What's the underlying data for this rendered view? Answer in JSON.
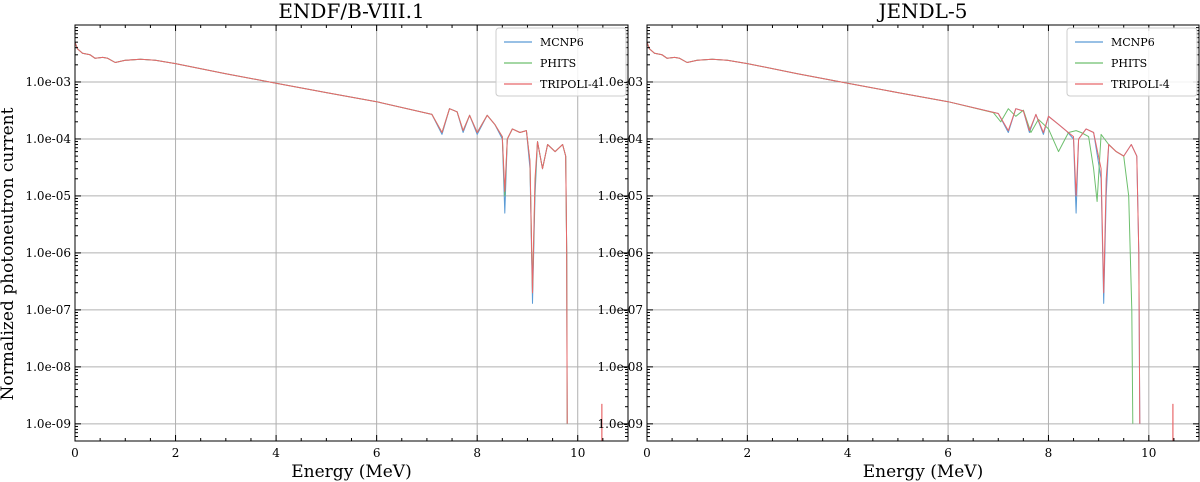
{
  "figure": {
    "ylabel": "Normalized photoneutron current"
  },
  "chart_data": [
    {
      "type": "line",
      "title": "ENDF/B-VIII.1",
      "xlabel": "Energy (MeV)",
      "ylabel": "Normalized photoneutron current",
      "xlim": [
        0,
        11
      ],
      "ylim": [
        5e-10,
        0.01
      ],
      "yscale": "log",
      "grid": true,
      "legend_position": "top-right",
      "xticks": [
        0,
        2,
        4,
        6,
        8,
        10
      ],
      "xtick_labels": [
        "0",
        "2",
        "4",
        "6",
        "8",
        "10"
      ],
      "yticks": [
        0.001,
        0.0001,
        1e-05,
        1e-06,
        1e-07,
        1e-08,
        1e-09
      ],
      "ytick_labels": [
        "1.0e-03",
        "1.0e-04",
        "1.0e-05",
        "1.0e-06",
        "1.0e-07",
        "1.0e-08",
        "1.0e-09"
      ],
      "series": [
        {
          "name": "MCNP6",
          "color": "#5b9bd5",
          "x": [
            0,
            0.05,
            0.15,
            0.3,
            0.4,
            0.55,
            0.65,
            0.8,
            1.0,
            1.3,
            1.6,
            2.0,
            3.0,
            4.0,
            5.0,
            6.0,
            7.1,
            7.3,
            7.45,
            7.6,
            7.72,
            7.85,
            8.0,
            8.2,
            8.35,
            8.5,
            8.55,
            8.6,
            8.7,
            8.85,
            8.98,
            9.05,
            9.1,
            9.15,
            9.2,
            9.3,
            9.4,
            9.55,
            9.7,
            9.76,
            9.78,
            9.79
          ],
          "y": [
            0.005,
            0.0038,
            0.0032,
            0.003,
            0.0026,
            0.0027,
            0.0026,
            0.0022,
            0.0024,
            0.0025,
            0.0024,
            0.0021,
            0.0014,
            0.00095,
            0.00065,
            0.00045,
            0.00027,
            0.00012,
            0.00034,
            0.0003,
            0.00013,
            0.00026,
            0.00012,
            0.00026,
            0.00018,
            0.0001,
            5e-06,
            0.0001,
            0.00015,
            0.00013,
            0.00014,
            3e-05,
            1.3e-07,
            1e-05,
            9e-05,
            3e-05,
            8e-05,
            6e-05,
            8e-05,
            5e-05,
            1e-06,
            1e-09
          ]
        },
        {
          "name": "PHITS",
          "color": "#6dbf6d",
          "x": [
            0,
            0.05,
            0.15,
            0.3,
            0.4,
            0.55,
            0.65,
            0.8,
            1.0,
            1.3,
            1.6,
            2.0,
            3.0,
            4.0,
            5.0,
            6.0,
            7.1,
            7.3,
            7.45,
            7.6,
            7.72,
            7.85,
            8.0,
            8.2,
            8.35,
            8.5,
            8.55,
            8.6,
            8.7,
            8.85,
            8.98,
            9.05,
            9.1,
            9.15,
            9.2,
            9.3,
            9.4,
            9.55,
            9.7,
            9.76,
            9.78,
            9.79
          ],
          "y": [
            0.005,
            0.0038,
            0.0032,
            0.003,
            0.0026,
            0.0027,
            0.0026,
            0.0022,
            0.0024,
            0.0025,
            0.0024,
            0.0021,
            0.0014,
            0.00095,
            0.00065,
            0.00045,
            0.00027,
            0.00013,
            0.00034,
            0.0003,
            0.00014,
            0.00026,
            0.00013,
            0.00026,
            0.00018,
            0.00011,
            1e-05,
            0.0001,
            0.00015,
            0.00013,
            0.00014,
            4e-05,
            2e-07,
            1.5e-05,
            9e-05,
            3e-05,
            8e-05,
            6e-05,
            8e-05,
            5e-05,
            1e-06,
            1e-09
          ]
        },
        {
          "name": "TRIPOLI-4",
          "color": "#e8676a",
          "x": [
            0,
            0.05,
            0.15,
            0.3,
            0.4,
            0.55,
            0.65,
            0.8,
            1.0,
            1.3,
            1.6,
            2.0,
            3.0,
            4.0,
            5.0,
            6.0,
            7.1,
            7.3,
            7.45,
            7.6,
            7.72,
            7.85,
            8.0,
            8.2,
            8.35,
            8.5,
            8.55,
            8.6,
            8.7,
            8.85,
            8.98,
            9.05,
            9.1,
            9.15,
            9.2,
            9.3,
            9.4,
            9.55,
            9.7,
            9.76,
            9.78,
            9.79
          ],
          "y": [
            0.005,
            0.0038,
            0.0032,
            0.003,
            0.0026,
            0.0027,
            0.0026,
            0.0022,
            0.0024,
            0.0025,
            0.0024,
            0.0021,
            0.0014,
            0.00095,
            0.00065,
            0.00045,
            0.00027,
            0.00013,
            0.00034,
            0.0003,
            0.00014,
            0.00026,
            0.00013,
            0.00026,
            0.00018,
            0.00011,
            1.2e-05,
            0.0001,
            0.00015,
            0.00013,
            0.00014,
            4e-05,
            2e-07,
            2e-05,
            9e-05,
            3e-05,
            8e-05,
            6e-05,
            8e-05,
            5e-05,
            1e-06,
            1e-09
          ]
        }
      ],
      "spikes": [
        {
          "x": 10.48,
          "y": 1e-09,
          "color": "#e8676a"
        }
      ]
    },
    {
      "type": "line",
      "title": "JENDL-5",
      "xlabel": "Energy (MeV)",
      "ylabel": "Normalized photoneutron current",
      "xlim": [
        0,
        11
      ],
      "ylim": [
        5e-10,
        0.01
      ],
      "yscale": "log",
      "grid": true,
      "legend_position": "top-right",
      "xticks": [
        0,
        2,
        4,
        6,
        8,
        10
      ],
      "xtick_labels": [
        "0",
        "2",
        "4",
        "6",
        "8",
        "10"
      ],
      "yticks": [
        0.001,
        0.0001,
        1e-05,
        1e-06,
        1e-07,
        1e-08,
        1e-09
      ],
      "ytick_labels": [
        "1.0e-03",
        "1.0e-04",
        "1.0e-05",
        "1.0e-06",
        "1.0e-07",
        "1.0e-08",
        "1.0e-09"
      ],
      "series": [
        {
          "name": "MCNP6",
          "color": "#5b9bd5",
          "x": [
            0,
            0.05,
            0.15,
            0.3,
            0.4,
            0.55,
            0.65,
            0.8,
            1.0,
            1.3,
            1.6,
            2.0,
            3.0,
            4.0,
            5.0,
            6.0,
            7.0,
            7.2,
            7.35,
            7.5,
            7.62,
            7.75,
            7.9,
            8.0,
            8.2,
            8.35,
            8.5,
            8.55,
            8.6,
            8.75,
            8.9,
            9.05,
            9.1,
            9.15,
            9.2,
            9.35,
            9.5,
            9.65,
            9.76,
            9.8,
            9.82
          ],
          "y": [
            0.005,
            0.0038,
            0.0032,
            0.003,
            0.0026,
            0.0027,
            0.0026,
            0.0022,
            0.0024,
            0.0025,
            0.0024,
            0.0021,
            0.0014,
            0.00095,
            0.00065,
            0.00045,
            0.00028,
            0.00013,
            0.00034,
            0.00031,
            0.00013,
            0.00027,
            0.00012,
            0.00025,
            0.00018,
            0.00014,
            0.0001,
            5e-06,
            0.0001,
            0.00015,
            0.00013,
            2e-05,
            1.3e-07,
            1e-05,
            8e-05,
            6e-05,
            5e-05,
            8e-05,
            5e-05,
            1e-06,
            1e-09
          ]
        },
        {
          "name": "PHITS",
          "color": "#6dbf6d",
          "x": [
            0,
            0.05,
            0.15,
            0.3,
            0.4,
            0.55,
            0.65,
            0.8,
            1.0,
            1.3,
            1.6,
            2.0,
            3.0,
            4.0,
            5.0,
            6.0,
            6.9,
            7.05,
            7.2,
            7.35,
            7.5,
            7.65,
            7.8,
            8.0,
            8.2,
            8.4,
            8.55,
            8.65,
            8.8,
            8.9,
            8.97,
            9.05,
            9.2,
            9.35,
            9.5,
            9.6,
            9.66,
            9.68
          ],
          "y": [
            0.005,
            0.0038,
            0.0032,
            0.003,
            0.0026,
            0.0027,
            0.0026,
            0.0022,
            0.0024,
            0.0025,
            0.0024,
            0.0021,
            0.0014,
            0.00095,
            0.00065,
            0.00045,
            0.00029,
            0.0002,
            0.00034,
            0.00025,
            0.00032,
            0.00013,
            0.00022,
            0.00015,
            6e-05,
            0.00013,
            0.00014,
            0.00013,
            0.00011,
            3e-05,
            8e-06,
            0.00012,
            8e-05,
            6e-05,
            5e-05,
            1e-05,
            1e-07,
            1e-09
          ]
        },
        {
          "name": "TRIPOLI-4",
          "color": "#e8676a",
          "x": [
            0,
            0.05,
            0.15,
            0.3,
            0.4,
            0.55,
            0.65,
            0.8,
            1.0,
            1.3,
            1.6,
            2.0,
            3.0,
            4.0,
            5.0,
            6.0,
            7.0,
            7.2,
            7.35,
            7.5,
            7.62,
            7.75,
            7.9,
            8.0,
            8.2,
            8.35,
            8.5,
            8.55,
            8.6,
            8.75,
            8.9,
            9.05,
            9.1,
            9.15,
            9.2,
            9.35,
            9.5,
            9.65,
            9.76,
            9.8,
            9.82
          ],
          "y": [
            0.005,
            0.0038,
            0.0032,
            0.003,
            0.0026,
            0.0027,
            0.0026,
            0.0022,
            0.0024,
            0.0025,
            0.0024,
            0.0021,
            0.0014,
            0.00095,
            0.00065,
            0.00045,
            0.00028,
            0.00014,
            0.00034,
            0.00031,
            0.00014,
            0.00027,
            0.00013,
            0.00025,
            0.00018,
            0.00014,
            0.00011,
            1e-05,
            0.0001,
            0.00015,
            0.00013,
            3e-05,
            2e-07,
            2e-05,
            8e-05,
            6e-05,
            5e-05,
            8e-05,
            5e-05,
            1e-06,
            1e-09
          ]
        }
      ],
      "spikes": [
        {
          "x": 10.48,
          "y": 1e-09,
          "color": "#e8676a"
        }
      ]
    }
  ]
}
